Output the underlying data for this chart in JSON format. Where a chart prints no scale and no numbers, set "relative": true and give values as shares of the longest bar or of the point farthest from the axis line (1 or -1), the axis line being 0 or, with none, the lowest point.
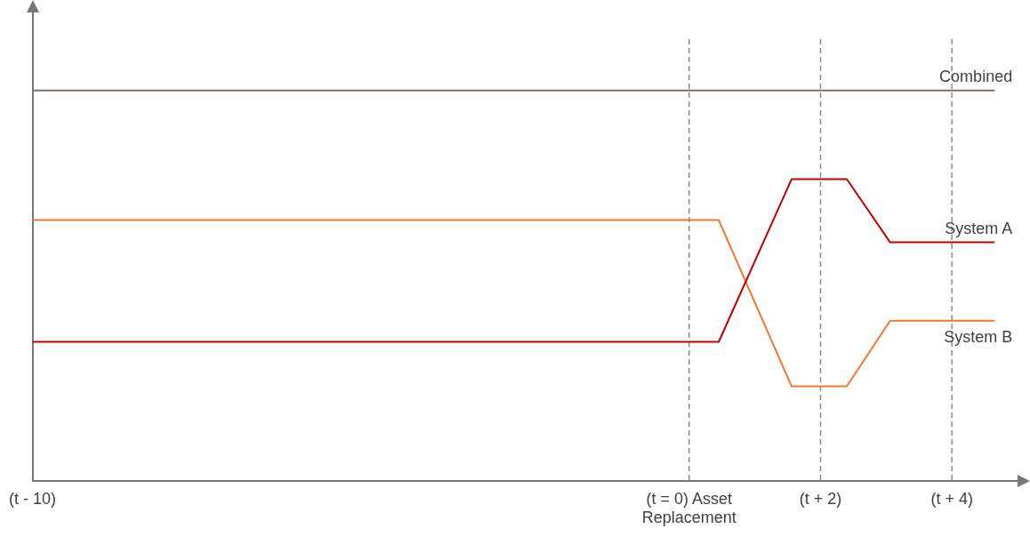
{
  "chart_data": {
    "type": "line",
    "relative": true,
    "xlim": [
      -10,
      5
    ],
    "xticks": [
      {
        "value": -10,
        "label": "(t - 10)"
      },
      {
        "value": 0,
        "label": "(t = 0) Asset Replacement"
      },
      {
        "value": 2,
        "label": "(t + 2)"
      },
      {
        "value": 4,
        "label": "(t + 4)"
      }
    ],
    "series": [
      {
        "name": "Combined",
        "color": "#7b6f64",
        "x": [
          -10,
          4.65
        ],
        "values": [
          1,
          1
        ]
      },
      {
        "name": "System A",
        "color": "#c00000",
        "x": [
          -10,
          0.45,
          1.56,
          2.4,
          3.06,
          4.65
        ],
        "values": [
          0.356,
          0.356,
          0.773,
          0.773,
          0.611,
          0.611
        ]
      },
      {
        "name": "System B",
        "color": "#f5762a",
        "x": [
          -10,
          0.45,
          1.56,
          2.4,
          3.06,
          4.65
        ],
        "values": [
          0.668,
          0.668,
          0.242,
          0.242,
          0.41,
          0.41
        ]
      }
    ],
    "ref_lines": [
      {
        "axis": "x",
        "value": 0,
        "color": "#8c8c8c",
        "line_style": "dashed"
      },
      {
        "axis": "x",
        "value": 2,
        "color": "#8c8c8c",
        "line_style": "dashed"
      },
      {
        "axis": "x",
        "value": 4,
        "color": "#8c8c8c",
        "line_style": "dashed"
      }
    ],
    "grid": false,
    "legend": false,
    "marker": "none",
    "line_style": "solid"
  }
}
